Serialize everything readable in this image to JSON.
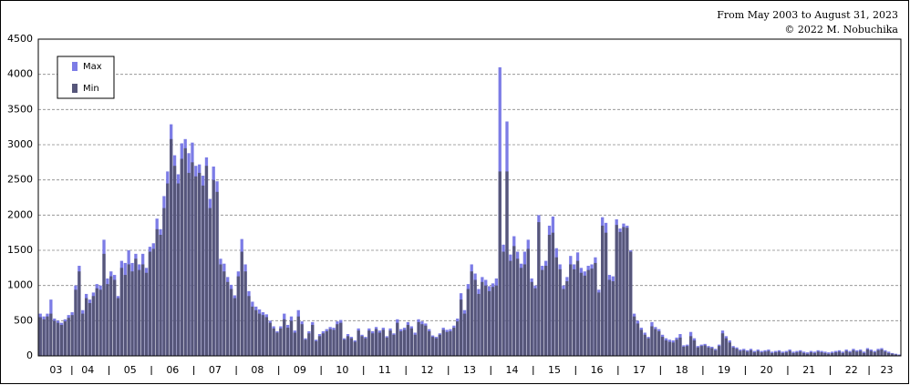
{
  "chart_data": {
    "type": "bar",
    "title": "From May 2003 to August 31, 2023",
    "subtitle": "© 2022 M. Nobuchika",
    "ylim": [
      0,
      4500
    ],
    "yticks": [
      0,
      500,
      1000,
      1500,
      2000,
      2500,
      3000,
      3500,
      4000,
      4500
    ],
    "grid": true,
    "legend": "top-left",
    "categories": [
      null,
      null,
      null,
      null,
      "03",
      null,
      null,
      null,
      null,
      null,
      null,
      null,
      null,
      "04",
      null,
      null,
      null,
      null,
      null,
      null,
      null,
      null,
      null,
      null,
      null,
      "05",
      null,
      null,
      null,
      null,
      null,
      null,
      null,
      null,
      null,
      null,
      null,
      "06",
      null,
      null,
      null,
      null,
      null,
      null,
      null,
      null,
      null,
      null,
      null,
      "07",
      null,
      null,
      null,
      null,
      null,
      null,
      null,
      null,
      null,
      null,
      null,
      "08",
      null,
      null,
      null,
      null,
      null,
      null,
      null,
      null,
      null,
      null,
      null,
      "09",
      null,
      null,
      null,
      null,
      null,
      null,
      null,
      null,
      null,
      null,
      null,
      "10",
      null,
      null,
      null,
      null,
      null,
      null,
      null,
      null,
      null,
      null,
      null,
      "11",
      null,
      null,
      null,
      null,
      null,
      null,
      null,
      null,
      null,
      null,
      null,
      "12",
      null,
      null,
      null,
      null,
      null,
      null,
      null,
      null,
      null,
      null,
      null,
      "13",
      null,
      null,
      null,
      null,
      null,
      null,
      null,
      null,
      null,
      null,
      null,
      "14",
      null,
      null,
      null,
      null,
      null,
      null,
      null,
      null,
      null,
      null,
      null,
      "15",
      null,
      null,
      null,
      null,
      null,
      null,
      null,
      null,
      null,
      null,
      null,
      "16",
      null,
      null,
      null,
      null,
      null,
      null,
      null,
      null,
      null,
      null,
      null,
      "17",
      null,
      null,
      null,
      null,
      null,
      null,
      null,
      null,
      null,
      null,
      null,
      "18",
      null,
      null,
      null,
      null,
      null,
      null,
      null,
      null,
      null,
      null,
      null,
      "19",
      null,
      null,
      null,
      null,
      null,
      null,
      null,
      null,
      null,
      null,
      null,
      "20",
      null,
      null,
      null,
      null,
      null,
      null,
      null,
      null,
      null,
      null,
      null,
      "21",
      null,
      null,
      null,
      null,
      null,
      null,
      null,
      null,
      null,
      null,
      null,
      "22",
      null,
      null,
      null,
      null,
      null,
      null,
      null,
      null,
      null,
      "23",
      null,
      null,
      null,
      null
    ],
    "series": [
      {
        "name": "Max",
        "color": "#7c7ce6",
        "values": [
          600,
          560,
          600,
          800,
          530,
          500,
          470,
          520,
          580,
          620,
          1000,
          1280,
          650,
          880,
          800,
          900,
          1020,
          1000,
          1650,
          1100,
          1200,
          1150,
          850,
          1350,
          1320,
          1500,
          1320,
          1450,
          1300,
          1450,
          1250,
          1550,
          1600,
          1950,
          1800,
          2270,
          2620,
          3290,
          2850,
          2580,
          3020,
          3080,
          2880,
          3030,
          2700,
          2720,
          2560,
          2820,
          2230,
          2690,
          2480,
          1380,
          1310,
          1120,
          1010,
          860,
          1200,
          1660,
          1300,
          920,
          770,
          700,
          660,
          620,
          590,
          500,
          420,
          350,
          420,
          600,
          440,
          560,
          360,
          650,
          490,
          250,
          350,
          480,
          230,
          310,
          350,
          380,
          410,
          400,
          490,
          510,
          250,
          310,
          270,
          220,
          390,
          300,
          270,
          390,
          350,
          410,
          360,
          400,
          280,
          390,
          320,
          520,
          380,
          400,
          480,
          420,
          330,
          520,
          490,
          460,
          380,
          290,
          270,
          320,
          400,
          370,
          380,
          430,
          530,
          890,
          650,
          1020,
          1300,
          1170,
          950,
          1120,
          1080,
          990,
          1030,
          1100,
          4100,
          1580,
          3330,
          1440,
          1700,
          1480,
          1310,
          1480,
          1650,
          1100,
          1000,
          2000,
          1280,
          1350,
          1850,
          1980,
          1530,
          1300,
          1000,
          1120,
          1420,
          1300,
          1470,
          1250,
          1200,
          1280,
          1300,
          1400,
          940,
          1970,
          1890,
          1150,
          1130,
          1940,
          1810,
          1880,
          1850,
          1500,
          600,
          500,
          400,
          330,
          270,
          480,
          410,
          380,
          300,
          250,
          230,
          220,
          260,
          310,
          150,
          160,
          340,
          250,
          140,
          160,
          170,
          140,
          130,
          100,
          160,
          360,
          280,
          220,
          140,
          120,
          90,
          100,
          80,
          100,
          70,
          90,
          70,
          80,
          90,
          60,
          70,
          80,
          60,
          70,
          90,
          60,
          70,
          80,
          60,
          50,
          70,
          60,
          80,
          70,
          60,
          50,
          60,
          70,
          80,
          60,
          90,
          70,
          100,
          80,
          90,
          60,
          110,
          90,
          70,
          100,
          110,
          80,
          60,
          40,
          30,
          20
        ]
      },
      {
        "name": "Min",
        "color": "#56567a",
        "values": [
          550,
          520,
          560,
          600,
          500,
          470,
          440,
          490,
          540,
          580,
          940,
          1200,
          600,
          820,
          750,
          850,
          960,
          940,
          1450,
          1020,
          1130,
          1080,
          820,
          1250,
          1150,
          1300,
          1200,
          1380,
          1220,
          1300,
          1180,
          1480,
          1520,
          1800,
          1720,
          2100,
          2450,
          3080,
          2700,
          2450,
          2800,
          2950,
          2600,
          2750,
          2550,
          2600,
          2420,
          2700,
          2100,
          2500,
          2330,
          1300,
          1200,
          1050,
          950,
          820,
          1130,
          1480,
          1200,
          850,
          700,
          650,
          600,
          580,
          550,
          470,
          390,
          330,
          390,
          520,
          400,
          500,
          330,
          560,
          450,
          230,
          320,
          440,
          210,
          280,
          320,
          350,
          380,
          370,
          450,
          470,
          230,
          280,
          250,
          200,
          360,
          280,
          250,
          360,
          320,
          380,
          330,
          370,
          260,
          360,
          300,
          470,
          350,
          370,
          440,
          390,
          300,
          480,
          450,
          430,
          350,
          270,
          250,
          300,
          370,
          340,
          350,
          400,
          490,
          800,
          600,
          950,
          1200,
          1080,
          880,
          1050,
          1000,
          920,
          980,
          1000,
          2620,
          1480,
          2620,
          1350,
          1560,
          1380,
          1250,
          1300,
          1520,
          1050,
          960,
          1900,
          1220,
          1280,
          1720,
          1750,
          1400,
          1230,
          950,
          1060,
          1300,
          1230,
          1350,
          1180,
          1140,
          1220,
          1240,
          1320,
          900,
          1850,
          1750,
          1080,
          1060,
          1860,
          1760,
          1830,
          1820,
          1480,
          560,
          460,
          370,
          300,
          250,
          420,
          380,
          350,
          270,
          220,
          200,
          190,
          230,
          260,
          130,
          140,
          280,
          220,
          120,
          140,
          150,
          120,
          110,
          80,
          140,
          320,
          250,
          190,
          120,
          100,
          70,
          80,
          60,
          80,
          50,
          70,
          50,
          60,
          70,
          40,
          50,
          60,
          40,
          50,
          70,
          40,
          50,
          60,
          40,
          30,
          50,
          40,
          60,
          50,
          40,
          30,
          40,
          50,
          60,
          40,
          70,
          50,
          80,
          60,
          70,
          40,
          90,
          70,
          50,
          80,
          90,
          60,
          40,
          30,
          20,
          10
        ]
      }
    ]
  }
}
